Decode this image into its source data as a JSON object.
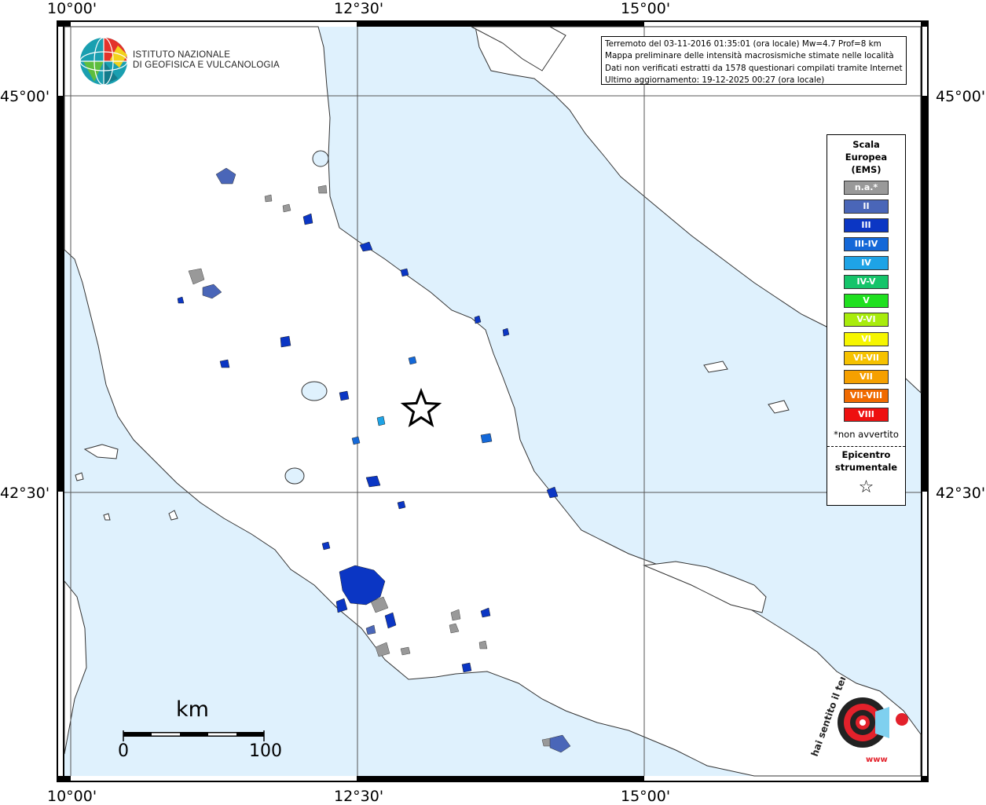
{
  "map": {
    "lon_labels": [
      "10°00'",
      "12°30'",
      "15°00'"
    ],
    "lat_labels": [
      "45°00'",
      "42°30'"
    ],
    "colors": {
      "sea": "#dff1fd",
      "land": "#ffffff",
      "frame": "#000000",
      "grid": "#555555"
    }
  },
  "info": {
    "line1": "Terremoto del 03-11-2016 01:35:01 (ora locale) Mw=4.7 Prof=8 km",
    "line2": "Mappa preliminare delle intensità macrosismiche stimate nelle località",
    "line3": "Dati non verificati estratti da 1578 questionari compilati tramite Internet.",
    "line4": "Ultimo aggiornamento: 19-12-2025 00:27 (ora locale)"
  },
  "logo": {
    "line1": "ISTITUTO NAZIONALE",
    "line2": "DI GEOFISICA E VULCANOLOGIA",
    "icon": "ingv-globe-icon"
  },
  "legend": {
    "title_line1": "Scala",
    "title_line2": "Europea",
    "title_line3": "(EMS)",
    "items": [
      {
        "label": "n.a.*",
        "color": "#999999"
      },
      {
        "label": "II",
        "color": "#4a66b8"
      },
      {
        "label": "III",
        "color": "#0b36c4"
      },
      {
        "label": "III-IV",
        "color": "#1468d8"
      },
      {
        "label": "IV",
        "color": "#1ea3e6"
      },
      {
        "label": "IV-V",
        "color": "#15c46a"
      },
      {
        "label": "V",
        "color": "#1fe01f"
      },
      {
        "label": "V-VI",
        "color": "#a8ec0c"
      },
      {
        "label": "VI",
        "color": "#f6f600"
      },
      {
        "label": "VI-VII",
        "color": "#f6c200"
      },
      {
        "label": "VII",
        "color": "#f6a000"
      },
      {
        "label": "VII-VIII",
        "color": "#f06a00"
      },
      {
        "label": "VIII",
        "color": "#ee1010"
      }
    ],
    "note": "*non avvertito",
    "epicentro_line1": "Epicentro",
    "epicentro_line2": "strumentale",
    "star": "☆"
  },
  "scale": {
    "unit": "km",
    "min": "0",
    "max": "100"
  },
  "epicenter": {
    "lon": 13.13,
    "lat": 43.03
  },
  "watermark": {
    "text_top": "hai sentito il terremoto.it",
    "text_www": "www",
    "icon": "haisentito-logo-icon"
  }
}
